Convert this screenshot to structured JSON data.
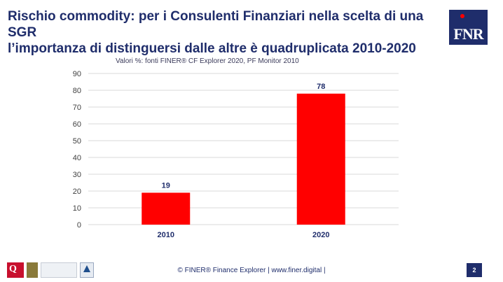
{
  "slide": {
    "title_line1": "Rischio commodity: per i Consulenti Finanziari nella scelta di una SGR",
    "title_line2": "l’importanza di distinguersi dalle altre è quadruplicata 2010-2020",
    "subtitle": "Valori %: fonti FINER® CF Explorer 2020, PF Monitor 2010",
    "logo_text": "FNR",
    "footer": "© FINER® Finance Explorer | www.finer.digital |",
    "page_number": "2"
  },
  "colors": {
    "title": "#1f2d6b",
    "bar": "#ff0000",
    "grid": "#d9d9d9",
    "axis_text": "#404040",
    "label_text": "#1f2d6b"
  },
  "chart_data": {
    "type": "bar",
    "categories": [
      "2010",
      "2020"
    ],
    "values": [
      19,
      78
    ],
    "ylim": [
      0,
      90
    ],
    "yticks": [
      0,
      10,
      20,
      30,
      40,
      50,
      60,
      70,
      80,
      90
    ],
    "grid": true,
    "legend": "none"
  }
}
